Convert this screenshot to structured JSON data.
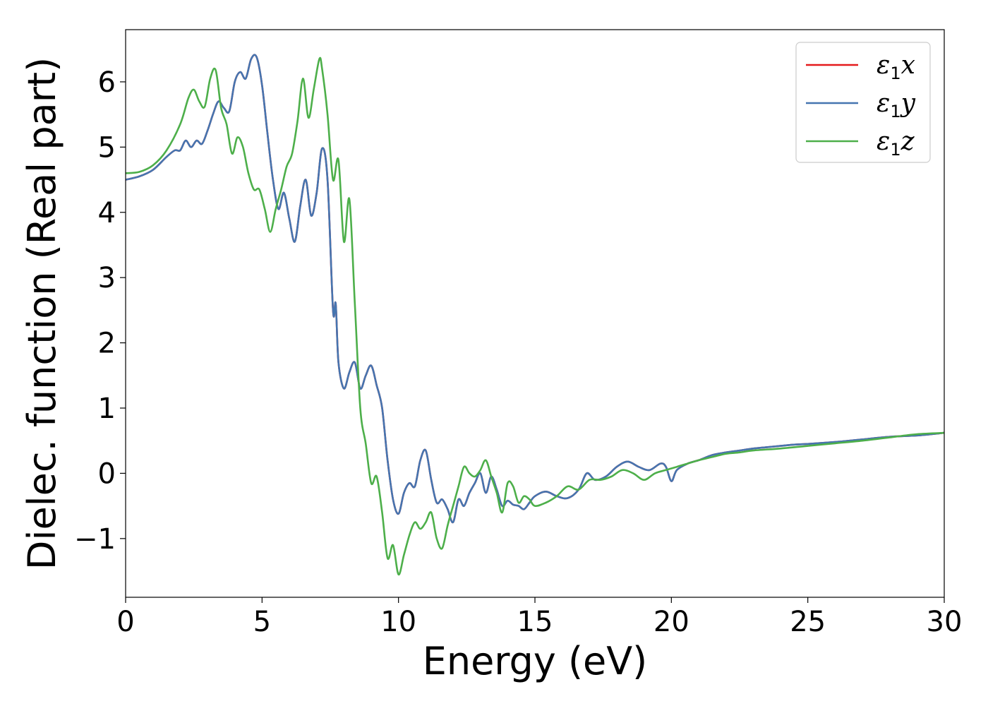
{
  "chart_data": {
    "type": "line",
    "xlabel": "Energy (eV)",
    "ylabel": "Dielec. function (Real part)",
    "xlim": [
      0,
      30
    ],
    "ylim": [
      -1.9,
      6.8
    ],
    "xticks": [
      0,
      5,
      10,
      15,
      20,
      25,
      30
    ],
    "yticks": [
      -1,
      0,
      1,
      2,
      3,
      4,
      5,
      6
    ],
    "xtick_labels": [
      "0",
      "5",
      "10",
      "15",
      "20",
      "25",
      "30"
    ],
    "ytick_labels": [
      "−1",
      "0",
      "1",
      "2",
      "3",
      "4",
      "5",
      "6"
    ],
    "grid": false,
    "legend_position": "top-right",
    "series": [
      {
        "name": "ε1x",
        "base": "ε",
        "sub": "1",
        "var": "x",
        "color": "#e41a1c",
        "x": [
          0,
          0.5,
          1,
          1.5,
          1.8,
          2.0,
          2.2,
          2.4,
          2.6,
          2.8,
          3.0,
          3.2,
          3.4,
          3.6,
          3.8,
          4.0,
          4.2,
          4.4,
          4.6,
          4.8,
          5.0,
          5.2,
          5.4,
          5.6,
          5.8,
          6.0,
          6.2,
          6.4,
          6.6,
          6.8,
          7.0,
          7.2,
          7.4,
          7.6,
          7.7,
          7.8,
          8.0,
          8.2,
          8.4,
          8.6,
          8.8,
          9.0,
          9.2,
          9.4,
          9.6,
          9.8,
          10.0,
          10.2,
          10.4,
          10.6,
          10.8,
          11.0,
          11.2,
          11.4,
          11.6,
          11.8,
          12.0,
          12.2,
          12.4,
          12.6,
          12.8,
          13.0,
          13.2,
          13.4,
          13.6,
          13.8,
          14.0,
          14.2,
          14.4,
          14.6,
          14.8,
          15.0,
          15.4,
          15.8,
          16.2,
          16.6,
          16.9,
          17.2,
          17.6,
          18.0,
          18.4,
          18.8,
          19.2,
          19.6,
          19.8,
          20.0,
          20.2,
          20.6,
          21.0,
          21.5,
          22.0,
          22.5,
          23.0,
          23.5,
          24.0,
          24.5,
          25.0,
          26.0,
          27.0,
          28.0,
          29.0,
          30.0
        ],
        "y": [
          4.5,
          4.55,
          4.65,
          4.85,
          4.95,
          4.95,
          5.1,
          5.0,
          5.1,
          5.05,
          5.25,
          5.5,
          5.7,
          5.6,
          5.55,
          6.0,
          6.15,
          6.05,
          6.35,
          6.38,
          5.95,
          5.2,
          4.5,
          4.05,
          4.3,
          3.9,
          3.55,
          4.1,
          4.5,
          3.95,
          4.3,
          4.98,
          4.5,
          2.5,
          2.6,
          1.7,
          1.3,
          1.55,
          1.7,
          1.3,
          1.5,
          1.65,
          1.35,
          1.0,
          0.2,
          -0.4,
          -0.62,
          -0.3,
          -0.15,
          -0.2,
          0.2,
          0.35,
          -0.1,
          -0.45,
          -0.4,
          -0.55,
          -0.75,
          -0.4,
          -0.5,
          -0.3,
          -0.15,
          0.0,
          -0.3,
          -0.05,
          -0.25,
          -0.5,
          -0.42,
          -0.48,
          -0.5,
          -0.55,
          -0.45,
          -0.35,
          -0.28,
          -0.35,
          -0.38,
          -0.25,
          0.0,
          -0.1,
          -0.05,
          0.1,
          0.18,
          0.1,
          0.05,
          0.15,
          0.1,
          -0.12,
          0.05,
          0.15,
          0.2,
          0.28,
          0.32,
          0.35,
          0.38,
          0.4,
          0.42,
          0.44,
          0.45,
          0.48,
          0.52,
          0.56,
          0.58,
          0.62
        ]
      },
      {
        "name": "ε1y",
        "base": "ε",
        "sub": "1",
        "var": "y",
        "color": "#4575b0",
        "x": [
          0,
          0.5,
          1,
          1.5,
          1.8,
          2.0,
          2.2,
          2.4,
          2.6,
          2.8,
          3.0,
          3.2,
          3.4,
          3.6,
          3.8,
          4.0,
          4.2,
          4.4,
          4.6,
          4.8,
          5.0,
          5.2,
          5.4,
          5.6,
          5.8,
          6.0,
          6.2,
          6.4,
          6.6,
          6.8,
          7.0,
          7.2,
          7.4,
          7.6,
          7.7,
          7.8,
          8.0,
          8.2,
          8.4,
          8.6,
          8.8,
          9.0,
          9.2,
          9.4,
          9.6,
          9.8,
          10.0,
          10.2,
          10.4,
          10.6,
          10.8,
          11.0,
          11.2,
          11.4,
          11.6,
          11.8,
          12.0,
          12.2,
          12.4,
          12.6,
          12.8,
          13.0,
          13.2,
          13.4,
          13.6,
          13.8,
          14.0,
          14.2,
          14.4,
          14.6,
          14.8,
          15.0,
          15.4,
          15.8,
          16.2,
          16.6,
          16.9,
          17.2,
          17.6,
          18.0,
          18.4,
          18.8,
          19.2,
          19.6,
          19.8,
          20.0,
          20.2,
          20.6,
          21.0,
          21.5,
          22.0,
          22.5,
          23.0,
          23.5,
          24.0,
          24.5,
          25.0,
          26.0,
          27.0,
          28.0,
          29.0,
          30.0
        ],
        "y": [
          4.5,
          4.55,
          4.65,
          4.85,
          4.95,
          4.95,
          5.1,
          5.0,
          5.1,
          5.05,
          5.25,
          5.5,
          5.7,
          5.6,
          5.55,
          6.0,
          6.15,
          6.05,
          6.35,
          6.38,
          5.95,
          5.2,
          4.5,
          4.05,
          4.3,
          3.9,
          3.55,
          4.1,
          4.5,
          3.95,
          4.3,
          4.98,
          4.5,
          2.5,
          2.6,
          1.7,
          1.3,
          1.55,
          1.7,
          1.3,
          1.5,
          1.65,
          1.35,
          1.0,
          0.2,
          -0.4,
          -0.62,
          -0.3,
          -0.15,
          -0.2,
          0.2,
          0.35,
          -0.1,
          -0.45,
          -0.4,
          -0.55,
          -0.75,
          -0.4,
          -0.5,
          -0.3,
          -0.15,
          0.0,
          -0.3,
          -0.05,
          -0.25,
          -0.5,
          -0.42,
          -0.48,
          -0.5,
          -0.55,
          -0.45,
          -0.35,
          -0.28,
          -0.35,
          -0.38,
          -0.25,
          0.0,
          -0.1,
          -0.05,
          0.1,
          0.18,
          0.1,
          0.05,
          0.15,
          0.1,
          -0.12,
          0.05,
          0.15,
          0.2,
          0.28,
          0.32,
          0.35,
          0.38,
          0.4,
          0.42,
          0.44,
          0.45,
          0.48,
          0.52,
          0.56,
          0.58,
          0.62
        ]
      },
      {
        "name": "ε1z",
        "base": "ε",
        "sub": "1",
        "var": "z",
        "color": "#4daf4a",
        "x": [
          0,
          0.5,
          1,
          1.5,
          2.0,
          2.3,
          2.5,
          2.7,
          2.9,
          3.1,
          3.3,
          3.5,
          3.7,
          3.9,
          4.1,
          4.3,
          4.5,
          4.7,
          4.9,
          5.1,
          5.3,
          5.5,
          5.7,
          5.9,
          6.1,
          6.3,
          6.5,
          6.7,
          6.9,
          7.1,
          7.2,
          7.4,
          7.6,
          7.8,
          8.0,
          8.2,
          8.4,
          8.6,
          8.8,
          9.0,
          9.2,
          9.4,
          9.6,
          9.8,
          10.0,
          10.2,
          10.4,
          10.6,
          10.8,
          11.0,
          11.2,
          11.4,
          11.6,
          11.8,
          12.0,
          12.2,
          12.4,
          12.6,
          12.8,
          13.0,
          13.2,
          13.4,
          13.6,
          13.8,
          14.0,
          14.2,
          14.4,
          14.6,
          14.8,
          15.0,
          15.4,
          15.8,
          16.2,
          16.6,
          17.0,
          17.4,
          17.8,
          18.2,
          18.6,
          19.0,
          19.4,
          19.8,
          20.2,
          20.6,
          21.0,
          21.5,
          22.0,
          22.5,
          23.0,
          24.0,
          25.0,
          26.0,
          27.0,
          28.0,
          29.0,
          30.0
        ],
        "y": [
          4.6,
          4.62,
          4.72,
          4.95,
          5.35,
          5.75,
          5.88,
          5.7,
          5.62,
          6.05,
          6.18,
          5.6,
          5.35,
          4.9,
          5.15,
          5.0,
          4.6,
          4.35,
          4.35,
          4.05,
          3.7,
          4.05,
          4.35,
          4.7,
          4.9,
          5.4,
          6.05,
          5.45,
          5.9,
          6.35,
          6.2,
          5.5,
          4.5,
          4.8,
          3.55,
          4.2,
          2.6,
          1.0,
          0.45,
          -0.15,
          -0.05,
          -0.6,
          -1.3,
          -1.1,
          -1.55,
          -1.25,
          -0.95,
          -0.75,
          -0.85,
          -0.75,
          -0.6,
          -1.0,
          -1.15,
          -0.8,
          -0.5,
          -0.2,
          0.1,
          0.0,
          -0.05,
          0.05,
          0.2,
          -0.05,
          -0.3,
          -0.6,
          -0.15,
          -0.2,
          -0.45,
          -0.35,
          -0.4,
          -0.5,
          -0.45,
          -0.35,
          -0.2,
          -0.25,
          -0.1,
          -0.1,
          -0.05,
          0.05,
          0.0,
          -0.1,
          0.0,
          0.05,
          0.1,
          0.15,
          0.2,
          0.25,
          0.3,
          0.32,
          0.35,
          0.38,
          0.42,
          0.46,
          0.5,
          0.55,
          0.6,
          0.62
        ]
      }
    ]
  }
}
